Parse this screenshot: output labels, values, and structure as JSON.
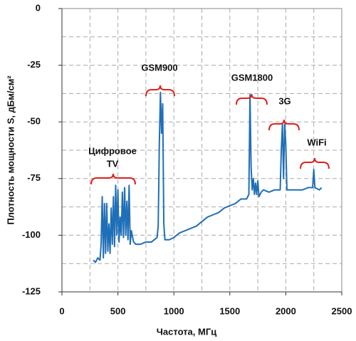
{
  "chart_data": {
    "type": "line",
    "x_label": "Частота, МГц",
    "y_label": "Плотность мощности S, дБм/см²",
    "xlim": [
      0,
      2500
    ],
    "ylim": [
      -125,
      0
    ],
    "xticks": [
      0,
      500,
      1000,
      1500,
      2000,
      2500
    ],
    "yticks": [
      0,
      -25,
      -50,
      -75,
      -100,
      -125
    ],
    "xgrid": [
      250,
      500,
      750,
      1000,
      1250,
      1500,
      1750,
      2000,
      2250
    ],
    "ygrid": [
      -12.5,
      -25,
      -37.5,
      -50,
      -62.5,
      -75,
      -87.5,
      -100,
      -112.5
    ],
    "annotations": [
      "Цифровое",
      "TV",
      "GSM900",
      "GSM1800",
      "3G",
      "WiFi"
    ],
    "annotation_color": "#e0201b",
    "series": [
      {
        "color": "#1f6fb8",
        "x": [
          280,
          300,
          320,
          340,
          350,
          360,
          370,
          380,
          390,
          400,
          410,
          420,
          430,
          440,
          450,
          460,
          470,
          480,
          490,
          500,
          510,
          520,
          530,
          540,
          550,
          560,
          570,
          580,
          590,
          600,
          610,
          620,
          640,
          660,
          700,
          750,
          800,
          850,
          860,
          870,
          880,
          890,
          900,
          910,
          920,
          960,
          1000,
          1050,
          1100,
          1150,
          1200,
          1250,
          1300,
          1350,
          1400,
          1450,
          1500,
          1550,
          1600,
          1650,
          1670,
          1680,
          1690,
          1700,
          1710,
          1720,
          1730,
          1740,
          1750,
          1760,
          1780,
          1800,
          1850,
          1900,
          1950,
          1960,
          1970,
          1980,
          1990,
          2000,
          2010,
          2050,
          2100,
          2150,
          2200,
          2240,
          2250,
          2260,
          2300,
          2320
        ],
        "values": [
          -111,
          -112,
          -110,
          -111,
          -104,
          -83,
          -110,
          -86,
          -108,
          -86,
          -107,
          -95,
          -108,
          -88,
          -104,
          -83,
          -105,
          -78,
          -100,
          -80,
          -103,
          -92,
          -100,
          -81,
          -101,
          -79,
          -100,
          -85,
          -102,
          -78,
          -104,
          -98,
          -103,
          -104,
          -104,
          -103,
          -103,
          -101,
          -96,
          -60,
          -37,
          -55,
          -42,
          -95,
          -102,
          -102,
          -101,
          -99,
          -98,
          -97,
          -96,
          -94,
          -92,
          -91,
          -90,
          -88,
          -87,
          -86,
          -84,
          -84,
          -82,
          -38,
          -70,
          -80,
          -75,
          -82,
          -77,
          -82,
          -76,
          -83,
          -81,
          -80,
          -81,
          -80,
          -80,
          -62,
          -51,
          -75,
          -51,
          -60,
          -80,
          -80,
          -80,
          -80,
          -79,
          -79,
          -71,
          -79,
          -80,
          -79
        ]
      }
    ]
  }
}
